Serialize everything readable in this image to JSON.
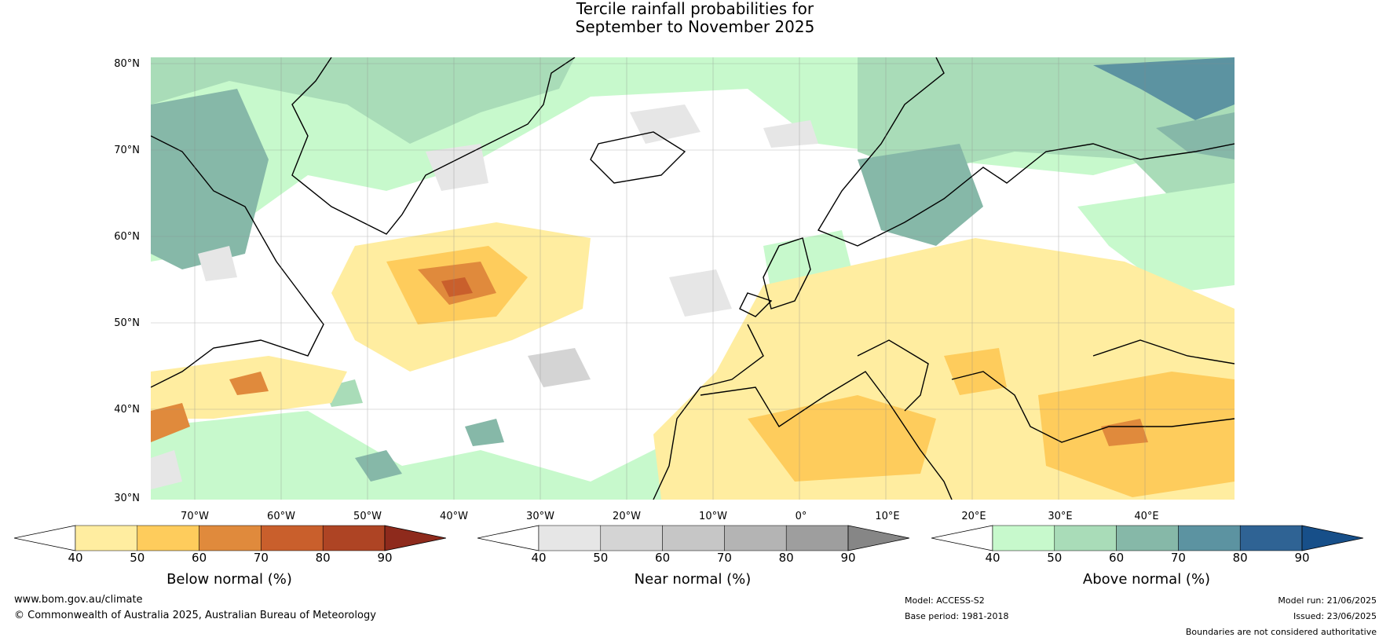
{
  "title": {
    "line1": "Tercile rainfall probabilities for",
    "line2": "September to November 2025"
  },
  "map": {
    "lat_labels": [
      "80°N",
      "70°N",
      "60°N",
      "50°N",
      "40°N",
      "30°N"
    ],
    "lon_labels": [
      "70°W",
      "60°W",
      "50°W",
      "40°W",
      "30°W",
      "20°W",
      "10°W",
      "0°",
      "10°E",
      "20°E",
      "30°E",
      "40°E"
    ]
  },
  "colorbars": [
    {
      "label": "Below normal (%)",
      "ticks": [
        "40",
        "50",
        "60",
        "70",
        "80",
        "90"
      ],
      "colors": [
        "#ffffff",
        "#ffeda0",
        "#fecc5c",
        "#e08a3c",
        "#c95f2c",
        "#ae4424",
        "#8e2a1c"
      ]
    },
    {
      "label": "Near normal (%)",
      "ticks": [
        "40",
        "50",
        "60",
        "70",
        "80",
        "90"
      ],
      "colors": [
        "#ffffff",
        "#e6e6e6",
        "#d4d4d4",
        "#c6c6c6",
        "#b4b4b4",
        "#9e9e9e",
        "#868686"
      ]
    },
    {
      "label": "Above normal (%)",
      "ticks": [
        "40",
        "50",
        "60",
        "70",
        "80",
        "90"
      ],
      "colors": [
        "#ffffff",
        "#c7f9cc",
        "#a9dcb8",
        "#86b8a8",
        "#5c93a1",
        "#2f6394",
        "#174f89"
      ]
    }
  ],
  "footer": {
    "url": "www.bom.gov.au/climate",
    "copyright": "© Commonwealth of Australia 2025, Australian Bureau of Meteorology",
    "model": "Model: ACCESS-S2",
    "base_period": "Base period: 1981-2018",
    "model_run": "Model run: 21/06/2025",
    "issued": "Issued: 23/06/2025",
    "disclaimer": "Boundaries are not considered authoritative"
  }
}
